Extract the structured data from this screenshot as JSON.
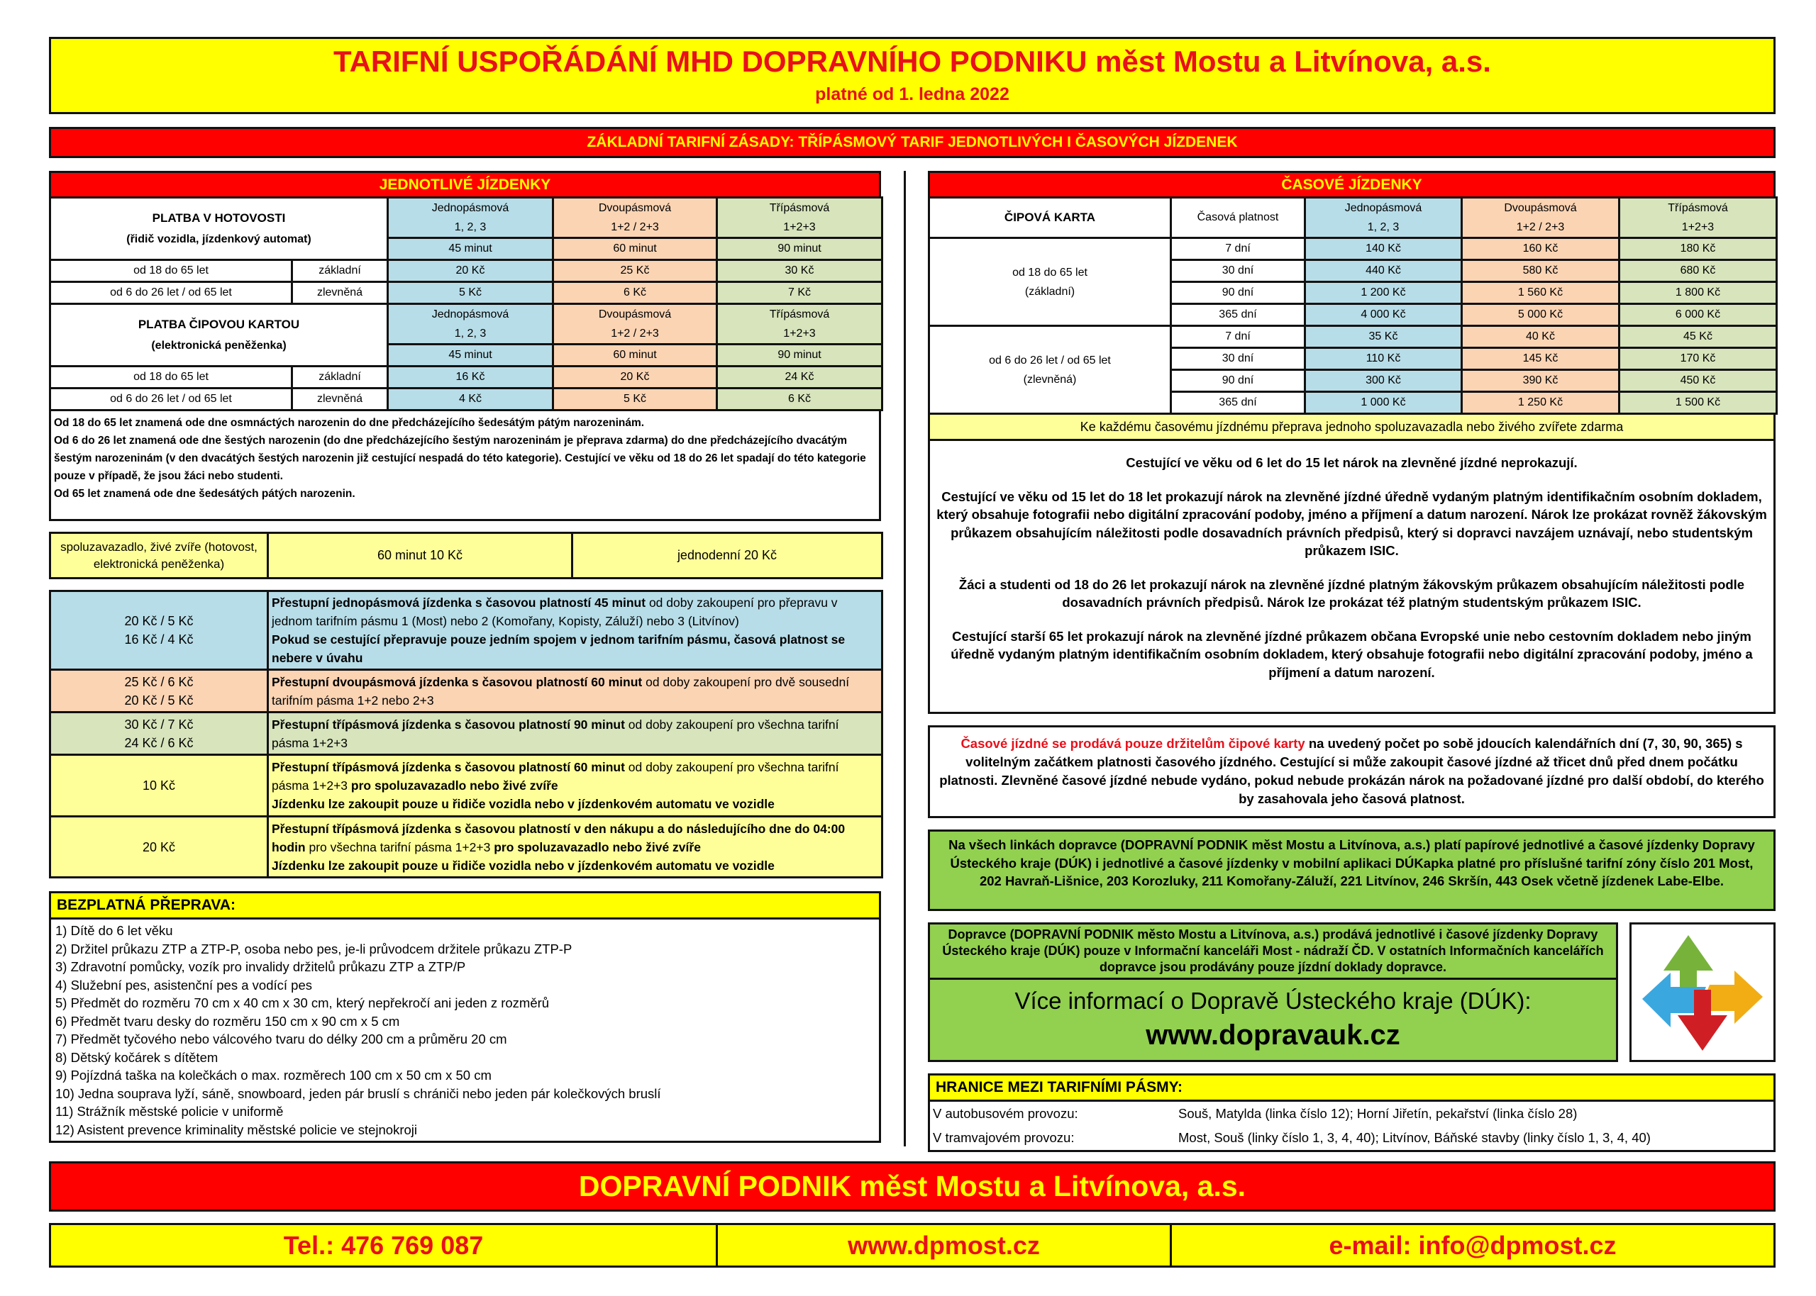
{
  "header": {
    "title": "TARIFNÍ USPOŘÁDÁNÍ MHD DOPRAVNÍHO PODNIKU měst Mostu a Litvínova, a.s.",
    "subtitle": "platné od 1. ledna 2022",
    "basic_principles": "ZÁKLADNÍ TARIFNÍ ZÁSADY: TŘÍPÁSMOVÝ TARIF JEDNOTLIVÝCH I ČASOVÝCH JÍZDENEK"
  },
  "colors": {
    "red": "#ff0000",
    "yellow": "#ffff00",
    "light_yellow": "#ffff99",
    "zone1": "#b7dde8",
    "zone2": "#fbd4b4",
    "zone3": "#d7e4bc",
    "green": "#92d050"
  },
  "single": {
    "title": "JEDNOTLIVÉ JÍZDENKY",
    "zones": [
      {
        "name": "Jednopásmová",
        "code": "1, 2, 3",
        "duration": "45 minut"
      },
      {
        "name": "Dvoupásmová",
        "code": "1+2 / 2+3",
        "duration": "60 minut"
      },
      {
        "name": "Třípásmová",
        "code": "1+2+3",
        "duration": "90 minut"
      }
    ],
    "cash": {
      "title": "PLATBA V HOTOVOSTI",
      "subtitle": "(řidič vozidla, jízdenkový automat)",
      "rows": [
        {
          "age": "od 18 do 65 let",
          "type": "základní",
          "prices": [
            "20 Kč",
            "25 Kč",
            "30 Kč"
          ]
        },
        {
          "age": "od 6 do 26 let / od 65 let",
          "type": "zlevněná",
          "prices": [
            "5 Kč",
            "6 Kč",
            "7 Kč"
          ]
        }
      ]
    },
    "card": {
      "title": "PLATBA ČIPOVOU KARTOU",
      "subtitle": "(elektronická peněženka)",
      "rows": [
        {
          "age": "od 18 do 65 let",
          "type": "základní",
          "prices": [
            "16 Kč",
            "20 Kč",
            "24 Kč"
          ]
        },
        {
          "age": "od 6 do 26 let / od 65 let",
          "type": "zlevněná",
          "prices": [
            "4 Kč",
            "5 Kč",
            "6 Kč"
          ]
        }
      ]
    },
    "notes": [
      "Od 18 do 65 let znamená ode dne osmnáctých narozenin do dne předcházejícího šedesátým pátým narozeninám.",
      "Od 6 do 26 let znamená ode dne šestých narozenin (do dne předcházejícího šestým narozeninám je přeprava zdarma) do dne předcházejícího dvacátým šestým narozeninám (v den dvacátých šestých narozenin již cestující nespadá do této kategorie). Cestující ve věku od 18 do 26 let spadají do této kategorie pouze v případě, že jsou žáci nebo studenti.",
      "Od 65 let znamená ode dne šedesátých pátých narozenin."
    ]
  },
  "companion": {
    "label": "spoluzavazadlo, živé zvíře (hotovost, elektronická peněženka)",
    "option1": "60 minut 10 Kč",
    "option2": "jednodenní 20 Kč"
  },
  "transfer": [
    {
      "color": "#b7dde8",
      "prices": [
        "20 Kč / 5 Kč",
        "16 Kč / 4 Kč"
      ],
      "desc": [
        {
          "t": "Přestupní jednopásmová jízdenka s časovou platností 45 minut",
          "b": true
        },
        {
          "t": " od doby zakoupení pro přepravu v jednom tarifním pásmu 1 (Most) nebo 2 (Komořany, Kopisty, Záluží) nebo 3 (Litvínov)",
          "b": false
        },
        {
          "t": "Pokud se cestující přepravuje pouze jedním spojem v jednom tarifním pásmu, časová platnost se nebere v úvahu",
          "b": true,
          "br": true
        }
      ]
    },
    {
      "color": "#fbd4b4",
      "prices": [
        "25 Kč / 6 Kč",
        "20 Kč / 5 Kč"
      ],
      "desc": [
        {
          "t": "Přestupní dvoupásmová jízdenka s časovou platností 60 minut",
          "b": true
        },
        {
          "t": " od doby zakoupení pro dvě sousední tarifním pásma 1+2 nebo 2+3",
          "b": false
        }
      ]
    },
    {
      "color": "#d7e4bc",
      "prices": [
        "30 Kč / 7 Kč",
        "24 Kč / 6 Kč"
      ],
      "desc": [
        {
          "t": "Přestupní třípásmová jízdenka s časovou platností 90 minut",
          "b": true
        },
        {
          "t": " od doby zakoupení pro všechna tarifní pásma 1+2+3",
          "b": false
        }
      ]
    },
    {
      "color": "#ffff99",
      "prices": [
        "10 Kč"
      ],
      "desc": [
        {
          "t": "Přestupní třípásmová jízdenka s časovou platností 60 minut",
          "b": true
        },
        {
          "t": " od doby zakoupení pro všechna tarifní pásma 1+2+3 ",
          "b": false
        },
        {
          "t": "pro spoluzavazadlo nebo živé zvíře",
          "b": true
        },
        {
          "t": "Jízdenku lze zakoupit pouze u řidiče vozidla nebo v jízdenkovém automatu ve vozidle",
          "b": true,
          "br": true
        }
      ]
    },
    {
      "color": "#ffff99",
      "prices": [
        "20 Kč"
      ],
      "desc": [
        {
          "t": "Přestupní třípásmová jízdenka s časovou platností v den nákupu a do následujícího dne do 04:00 hodin",
          "b": true
        },
        {
          "t": " pro všechna tarifní pásma 1+2+3 ",
          "b": false
        },
        {
          "t": "pro spoluzavazadlo nebo živé zvíře",
          "b": true
        },
        {
          "t": "Jízdenku lze zakoupit pouze u řidiče vozidla nebo v jízdenkovém automatu ve vozidle",
          "b": true,
          "br": true
        }
      ]
    }
  ],
  "free": {
    "title": "BEZPLATNÁ PŘEPRAVA:",
    "items": [
      "1) Dítě do 6 let věku",
      "2) Držitel průkazu ZTP a ZTP-P, osoba nebo pes, je-li průvodcem držitele průkazu ZTP-P",
      "3) Zdravotní pomůcky, vozík pro invalidy držitelů průkazu ZTP a ZTP/P",
      "4) Služební pes, asistenční pes a vodící pes",
      "5) Předmět do rozměru 70 cm x 40 cm x 30 cm, který nepřekročí ani jeden z rozměrů",
      "6) Předmět tvaru desky do rozměru 150 cm x 90 cm x 5 cm",
      "7) Předmět tyčového nebo válcového tvaru do délky 200 cm a průměru 20 cm",
      "8) Dětský kočárek s dítětem",
      "9) Pojízdná taška na kolečkách o max. rozměrech 100 cm x 50 cm x 50 cm",
      "10) Jedna souprava lyží, sáně, snowboard, jeden pár bruslí s chrániči nebo jeden pár kolečkových bruslí",
      "11) Strážník městské policie v uniformě",
      "12) Asistent prevence kriminality městské policie ve stejnokroji"
    ]
  },
  "season": {
    "title": "ČASOVÉ JÍZDENKY",
    "card_label": "ČIPOVÁ KARTA",
    "validity_label": "Časová platnost",
    "zones": [
      {
        "name": "Jednopásmová",
        "code": "1, 2, 3"
      },
      {
        "name": "Dvoupásmová",
        "code": "1+2 / 2+3"
      },
      {
        "name": "Třípásmová",
        "code": "1+2+3"
      }
    ],
    "groups": [
      {
        "label": "od 18 do 65 let",
        "sub": "(základní)",
        "rows": [
          {
            "days": "7 dní",
            "prices": [
              "140 Kč",
              "160 Kč",
              "180 Kč"
            ]
          },
          {
            "days": "30 dní",
            "prices": [
              "440 Kč",
              "580 Kč",
              "680 Kč"
            ]
          },
          {
            "days": "90 dní",
            "prices": [
              "1 200 Kč",
              "1 560 Kč",
              "1 800 Kč"
            ]
          },
          {
            "days": "365 dní",
            "prices": [
              "4 000 Kč",
              "5 000 Kč",
              "6 000 Kč"
            ]
          }
        ]
      },
      {
        "label": "od 6 do 26 let / od 65 let",
        "sub": "(zlevněná)",
        "rows": [
          {
            "days": "7 dní",
            "prices": [
              "35 Kč",
              "40 Kč",
              "45 Kč"
            ]
          },
          {
            "days": "30 dní",
            "prices": [
              "110 Kč",
              "145 Kč",
              "170 Kč"
            ]
          },
          {
            "days": "90 dní",
            "prices": [
              "300 Kč",
              "390 Kč",
              "450 Kč"
            ]
          },
          {
            "days": "365 dní",
            "prices": [
              "1 000 Kč",
              "1 250 Kč",
              "1 500 Kč"
            ]
          }
        ]
      }
    ],
    "companion_note": "Ke každému časovému jízdnému přeprava jednoho spoluzavazadla nebo živého zvířete zdarma",
    "info": [
      "Cestující ve věku od 6 let do 15 let nárok na zlevněné jízdné neprokazují.",
      "Cestující ve věku od 15 let do 18 let prokazují nárok na zlevněné jízdné úředně vydaným platným identifikačním osobním dokladem, který obsahuje fotografii nebo digitální zpracování podoby, jméno a příjmení a datum narození. Nárok lze prokázat rovněž žákovským průkazem obsahujícím náležitosti podle dosavadních právních předpisů, který si dopravci navzájem uznávají, nebo studentským průkazem ISIC.",
      "Žáci a studenti od 18 do 26 let prokazují nárok na zlevněné jízdné platným žákovským průkazem obsahujícím náležitosti podle dosavadních právních předpisů. Nárok lze prokázat též platným studentským průkazem ISIC.",
      "Cestující starší 65 let prokazují nárok na zlevněné jízdné průkazem občana Evropské unie nebo cestovním dokladem nebo jiným úředně vydaným platným identifikačním osobním dokladem, který obsahuje fotografii nebo digitální zpracování podoby, jméno a příjmení a datum narození."
    ],
    "sale_red": "Časové jízdné se prodává pouze držitelům čipové karty",
    "sale_rest": " na uvedený počet po sobě jdoucích kalendářních dní (7, 30, 90, 365) s volitelným začátkem platnosti časového jízdného. Cestující si může zakoupit časové jízdné až třicet dnů před dnem počátku platnosti. Zlevněné časové jízdné nebude vydáno, pokud nebude prokázán nárok na požadované jízdné pro další období, do kterého by zasahovala jeho časová platnost."
  },
  "duk": {
    "validity": "Na všech linkách dopravce (DOPRAVNÍ PODNIK měst Mostu a Litvínova, a.s.) platí papírové jednotlivé a časové jízdenky Dopravy Ústeckého kraje (DÚK) i jednotlivé a časové jízdenky v mobilní aplikaci DÚKapka platné pro příslušné tarifní zóny číslo 201 Most, 202 Havraň-Lišnice, 203 Korozluky, 211 Komořany-Záluží, 221 Litvínov, 246 Skršín, 443 Osek včetně jízdenek Labe-Elbe.",
    "sale": "Dopravce (DOPRAVNÍ PODNIK město Mostu a Litvínova, a.s.) prodává jednotlivé i časové jízdenky Dopravy Ústeckého kraje (DÚK) pouze v Informační kanceláři Most - nádraží ČD. V ostatních Informačních kancelářích dopravce jsou prodávány pouze jízdní doklady dopravce.",
    "more_info": "Více informací o Dopravě Ústeckého kraje (DÚK):",
    "url": "www.dopravauk.cz",
    "logo_icon": "duk-arrows-logo"
  },
  "borders": {
    "title": "HRANICE MEZI TARIFNÍMI PÁSMY:",
    "rows": [
      {
        "label": "V autobusovém provozu:",
        "value": "Souš, Matylda (linka číslo 12); Horní Jiřetín, pekařství (linka číslo 28)"
      },
      {
        "label": "V tramvajovém provozu:",
        "value": "Most, Souš (linky číslo 1, 3, 4, 40); Litvínov, Báňské stavby (linky číslo 1, 3, 4, 40)"
      }
    ]
  },
  "footer": {
    "company": "DOPRAVNÍ PODNIK měst Mostu a Litvínova, a.s.",
    "phone": "Tel.: 476 769 087",
    "web": "www.dpmost.cz",
    "email": "e-mail: info@dpmost.cz"
  }
}
